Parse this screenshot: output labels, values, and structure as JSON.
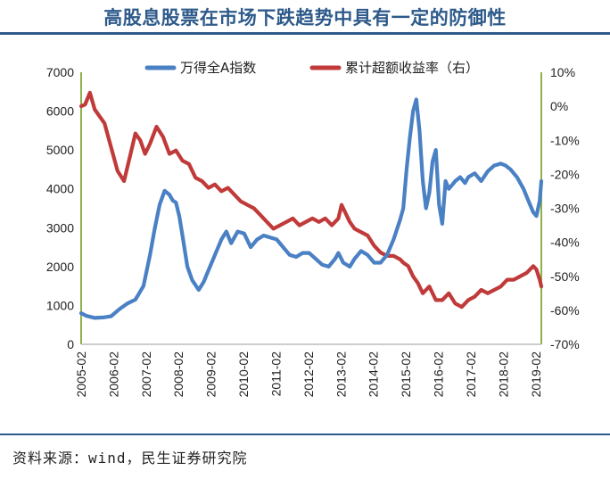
{
  "title": "高股息股票在市场下跌趋势中具有一定的防御性",
  "source": "资料来源：wind，民生证券研究院",
  "colors": {
    "blue": "#4a80c4",
    "red": "#c03a3a",
    "axis": "#8fb04a",
    "title": "#2e5a8a"
  },
  "chart_data": {
    "type": "line",
    "legend_position": "top",
    "grid": false,
    "x_ticks": [
      "2005-02",
      "2006-02",
      "2007-02",
      "2008-02",
      "2009-02",
      "2010-02",
      "2011-02",
      "2012-02",
      "2013-02",
      "2014-02",
      "2015-02",
      "2016-02",
      "2017-02",
      "2018-02",
      "2019-02"
    ],
    "xlim": [
      2005.08,
      2019.25
    ],
    "y_left": {
      "ticks": [
        "0",
        "1000",
        "2000",
        "3000",
        "4000",
        "5000",
        "6000",
        "7000"
      ],
      "ylim": [
        0,
        7000
      ]
    },
    "y_right": {
      "ticks": [
        "10%",
        "0%",
        "-10%",
        "-20%",
        "-30%",
        "-40%",
        "-50%",
        "-60%",
        "-70%"
      ],
      "ylim": [
        -70,
        10
      ]
    },
    "series": [
      {
        "name": "万得全A指数",
        "axis": "left",
        "x": [
          2005.08,
          2005.25,
          2005.5,
          2005.75,
          2006.0,
          2006.25,
          2006.5,
          2006.75,
          2007.0,
          2007.2,
          2007.35,
          2007.5,
          2007.65,
          2007.8,
          2007.9,
          2008.0,
          2008.1,
          2008.2,
          2008.35,
          2008.5,
          2008.7,
          2008.85,
          2009.0,
          2009.2,
          2009.4,
          2009.55,
          2009.7,
          2009.9,
          2010.1,
          2010.3,
          2010.5,
          2010.7,
          2010.9,
          2011.1,
          2011.3,
          2011.5,
          2011.7,
          2011.9,
          2012.1,
          2012.3,
          2012.5,
          2012.7,
          2012.9,
          2013.0,
          2013.15,
          2013.35,
          2013.5,
          2013.7,
          2013.9,
          2014.1,
          2014.3,
          2014.5,
          2014.7,
          2014.9,
          2015.0,
          2015.1,
          2015.2,
          2015.3,
          2015.4,
          2015.5,
          2015.6,
          2015.7,
          2015.8,
          2015.9,
          2016.0,
          2016.1,
          2016.2,
          2016.3,
          2016.4,
          2016.5,
          2016.6,
          2016.75,
          2016.9,
          2017.0,
          2017.2,
          2017.4,
          2017.6,
          2017.8,
          2018.0,
          2018.15,
          2018.3,
          2018.5,
          2018.7,
          2018.85,
          2019.0,
          2019.1,
          2019.2,
          2019.25
        ],
        "values": [
          800,
          730,
          680,
          690,
          720,
          900,
          1050,
          1150,
          1500,
          2300,
          3000,
          3600,
          3950,
          3850,
          3700,
          3650,
          3300,
          2800,
          2000,
          1650,
          1400,
          1600,
          1900,
          2300,
          2700,
          2900,
          2600,
          2900,
          2850,
          2500,
          2700,
          2800,
          2750,
          2700,
          2500,
          2300,
          2250,
          2350,
          2350,
          2200,
          2050,
          2000,
          2200,
          2350,
          2100,
          2000,
          2200,
          2400,
          2300,
          2100,
          2100,
          2300,
          2700,
          3200,
          3500,
          4500,
          5300,
          6000,
          6300,
          5500,
          4200,
          3500,
          3900,
          4700,
          5000,
          3600,
          3100,
          4200,
          4000,
          4100,
          4200,
          4300,
          4150,
          4300,
          4400,
          4200,
          4450,
          4600,
          4650,
          4600,
          4500,
          4300,
          4000,
          3700,
          3400,
          3300,
          3700,
          4200
        ]
      },
      {
        "name": "累计超额收益率（右）",
        "axis": "right",
        "x": [
          2005.08,
          2005.2,
          2005.35,
          2005.5,
          2005.65,
          2005.8,
          2006.0,
          2006.2,
          2006.4,
          2006.6,
          2006.75,
          2006.9,
          2007.05,
          2007.2,
          2007.4,
          2007.6,
          2007.8,
          2008.0,
          2008.2,
          2008.4,
          2008.6,
          2008.8,
          2009.0,
          2009.2,
          2009.4,
          2009.6,
          2009.8,
          2010.0,
          2010.2,
          2010.4,
          2010.6,
          2010.8,
          2011.0,
          2011.2,
          2011.4,
          2011.6,
          2011.8,
          2012.0,
          2012.2,
          2012.4,
          2012.6,
          2012.8,
          2013.0,
          2013.1,
          2013.2,
          2013.35,
          2013.5,
          2013.7,
          2013.9,
          2014.1,
          2014.3,
          2014.5,
          2014.7,
          2014.9,
          2015.0,
          2015.15,
          2015.3,
          2015.45,
          2015.6,
          2015.8,
          2016.0,
          2016.2,
          2016.4,
          2016.6,
          2016.8,
          2017.0,
          2017.2,
          2017.4,
          2017.6,
          2017.8,
          2018.0,
          2018.2,
          2018.4,
          2018.6,
          2018.8,
          2019.0,
          2019.1,
          2019.2,
          2019.25
        ],
        "values": [
          0,
          0.5,
          4,
          -1,
          -3,
          -5,
          -12,
          -19,
          -22,
          -14,
          -8,
          -10,
          -14,
          -11,
          -6,
          -9,
          -14,
          -13,
          -16,
          -17,
          -21,
          -22,
          -24,
          -23,
          -25,
          -24,
          -26,
          -28,
          -29,
          -30,
          -32,
          -34,
          -36,
          -35,
          -34,
          -33,
          -35,
          -34,
          -33,
          -34,
          -33,
          -35,
          -33,
          -29,
          -31,
          -34,
          -36,
          -37,
          -38,
          -41,
          -43,
          -44,
          -44,
          -45,
          -46,
          -47,
          -50,
          -52,
          -55,
          -53,
          -57,
          -57,
          -55,
          -58,
          -59,
          -57,
          -56,
          -54,
          -55,
          -54,
          -53,
          -51,
          -51,
          -50,
          -49,
          -47,
          -48,
          -51,
          -53
        ]
      }
    ]
  }
}
